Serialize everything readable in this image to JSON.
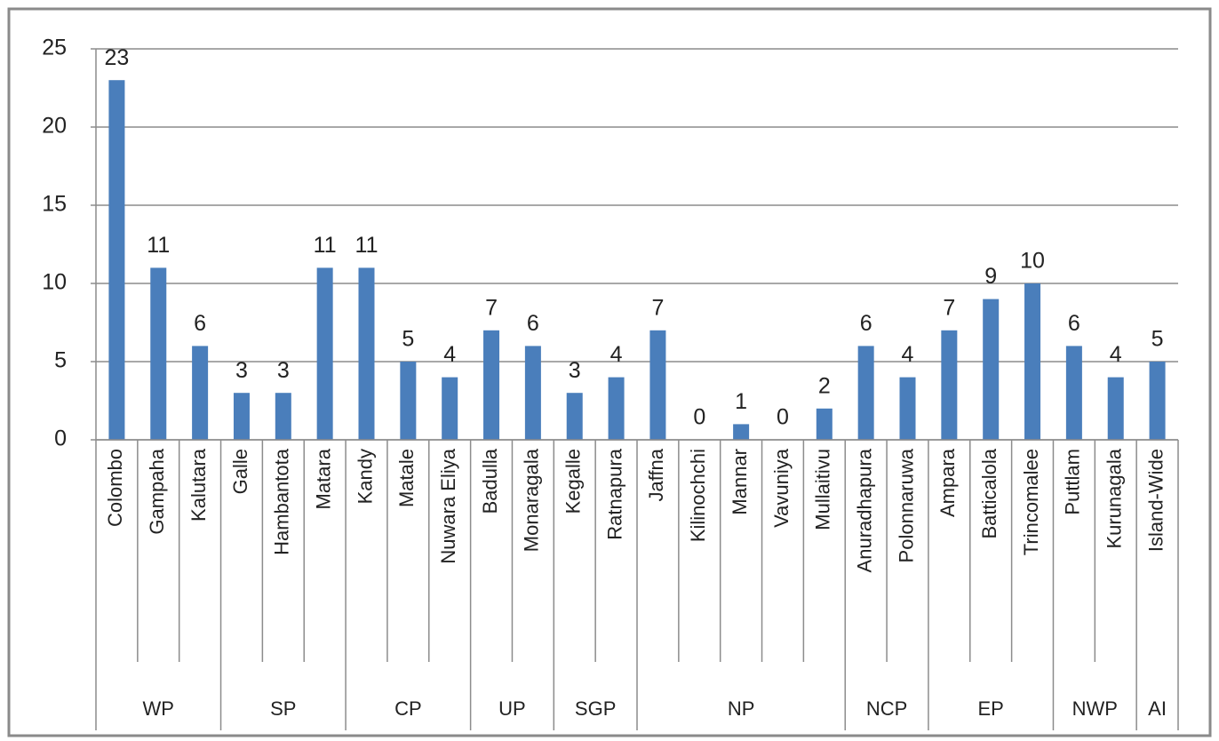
{
  "chart_data": {
    "type": "bar",
    "categories": [
      "Colombo",
      "Gampaha",
      "Kalutara",
      "Galle",
      "Hambantota",
      "Matara",
      "Kandy",
      "Matale",
      "Nuwara Eliya",
      "Badulla",
      "Monaragala",
      "Kegalle",
      "Ratnapura",
      "Jaffna",
      "Kilinochchi",
      "Mannar",
      "Vavuniya",
      "Mullaitivu",
      "Anuradhapura",
      "Polonnaruwa",
      "Ampara",
      "Batticalola",
      "Trincomalee",
      "Puttlam",
      "Kurunagala",
      "Island-Wide"
    ],
    "category_groups": [
      "WP",
      null,
      null,
      "SP",
      null,
      null,
      "CP",
      null,
      null,
      "UP",
      null,
      "SGP",
      null,
      "NP",
      null,
      null,
      null,
      null,
      "NCP",
      null,
      "EP",
      null,
      null,
      "NWP",
      null,
      "AI"
    ],
    "values": [
      23,
      11,
      6,
      3,
      3,
      11,
      11,
      5,
      4,
      7,
      6,
      3,
      4,
      7,
      0,
      1,
      0,
      2,
      6,
      4,
      7,
      9,
      10,
      6,
      4,
      5
    ],
    "color": "#4a7ebb",
    "ylim": [
      0,
      25
    ],
    "yticks": [
      0,
      5,
      10,
      15,
      20,
      25
    ],
    "grid": true
  }
}
